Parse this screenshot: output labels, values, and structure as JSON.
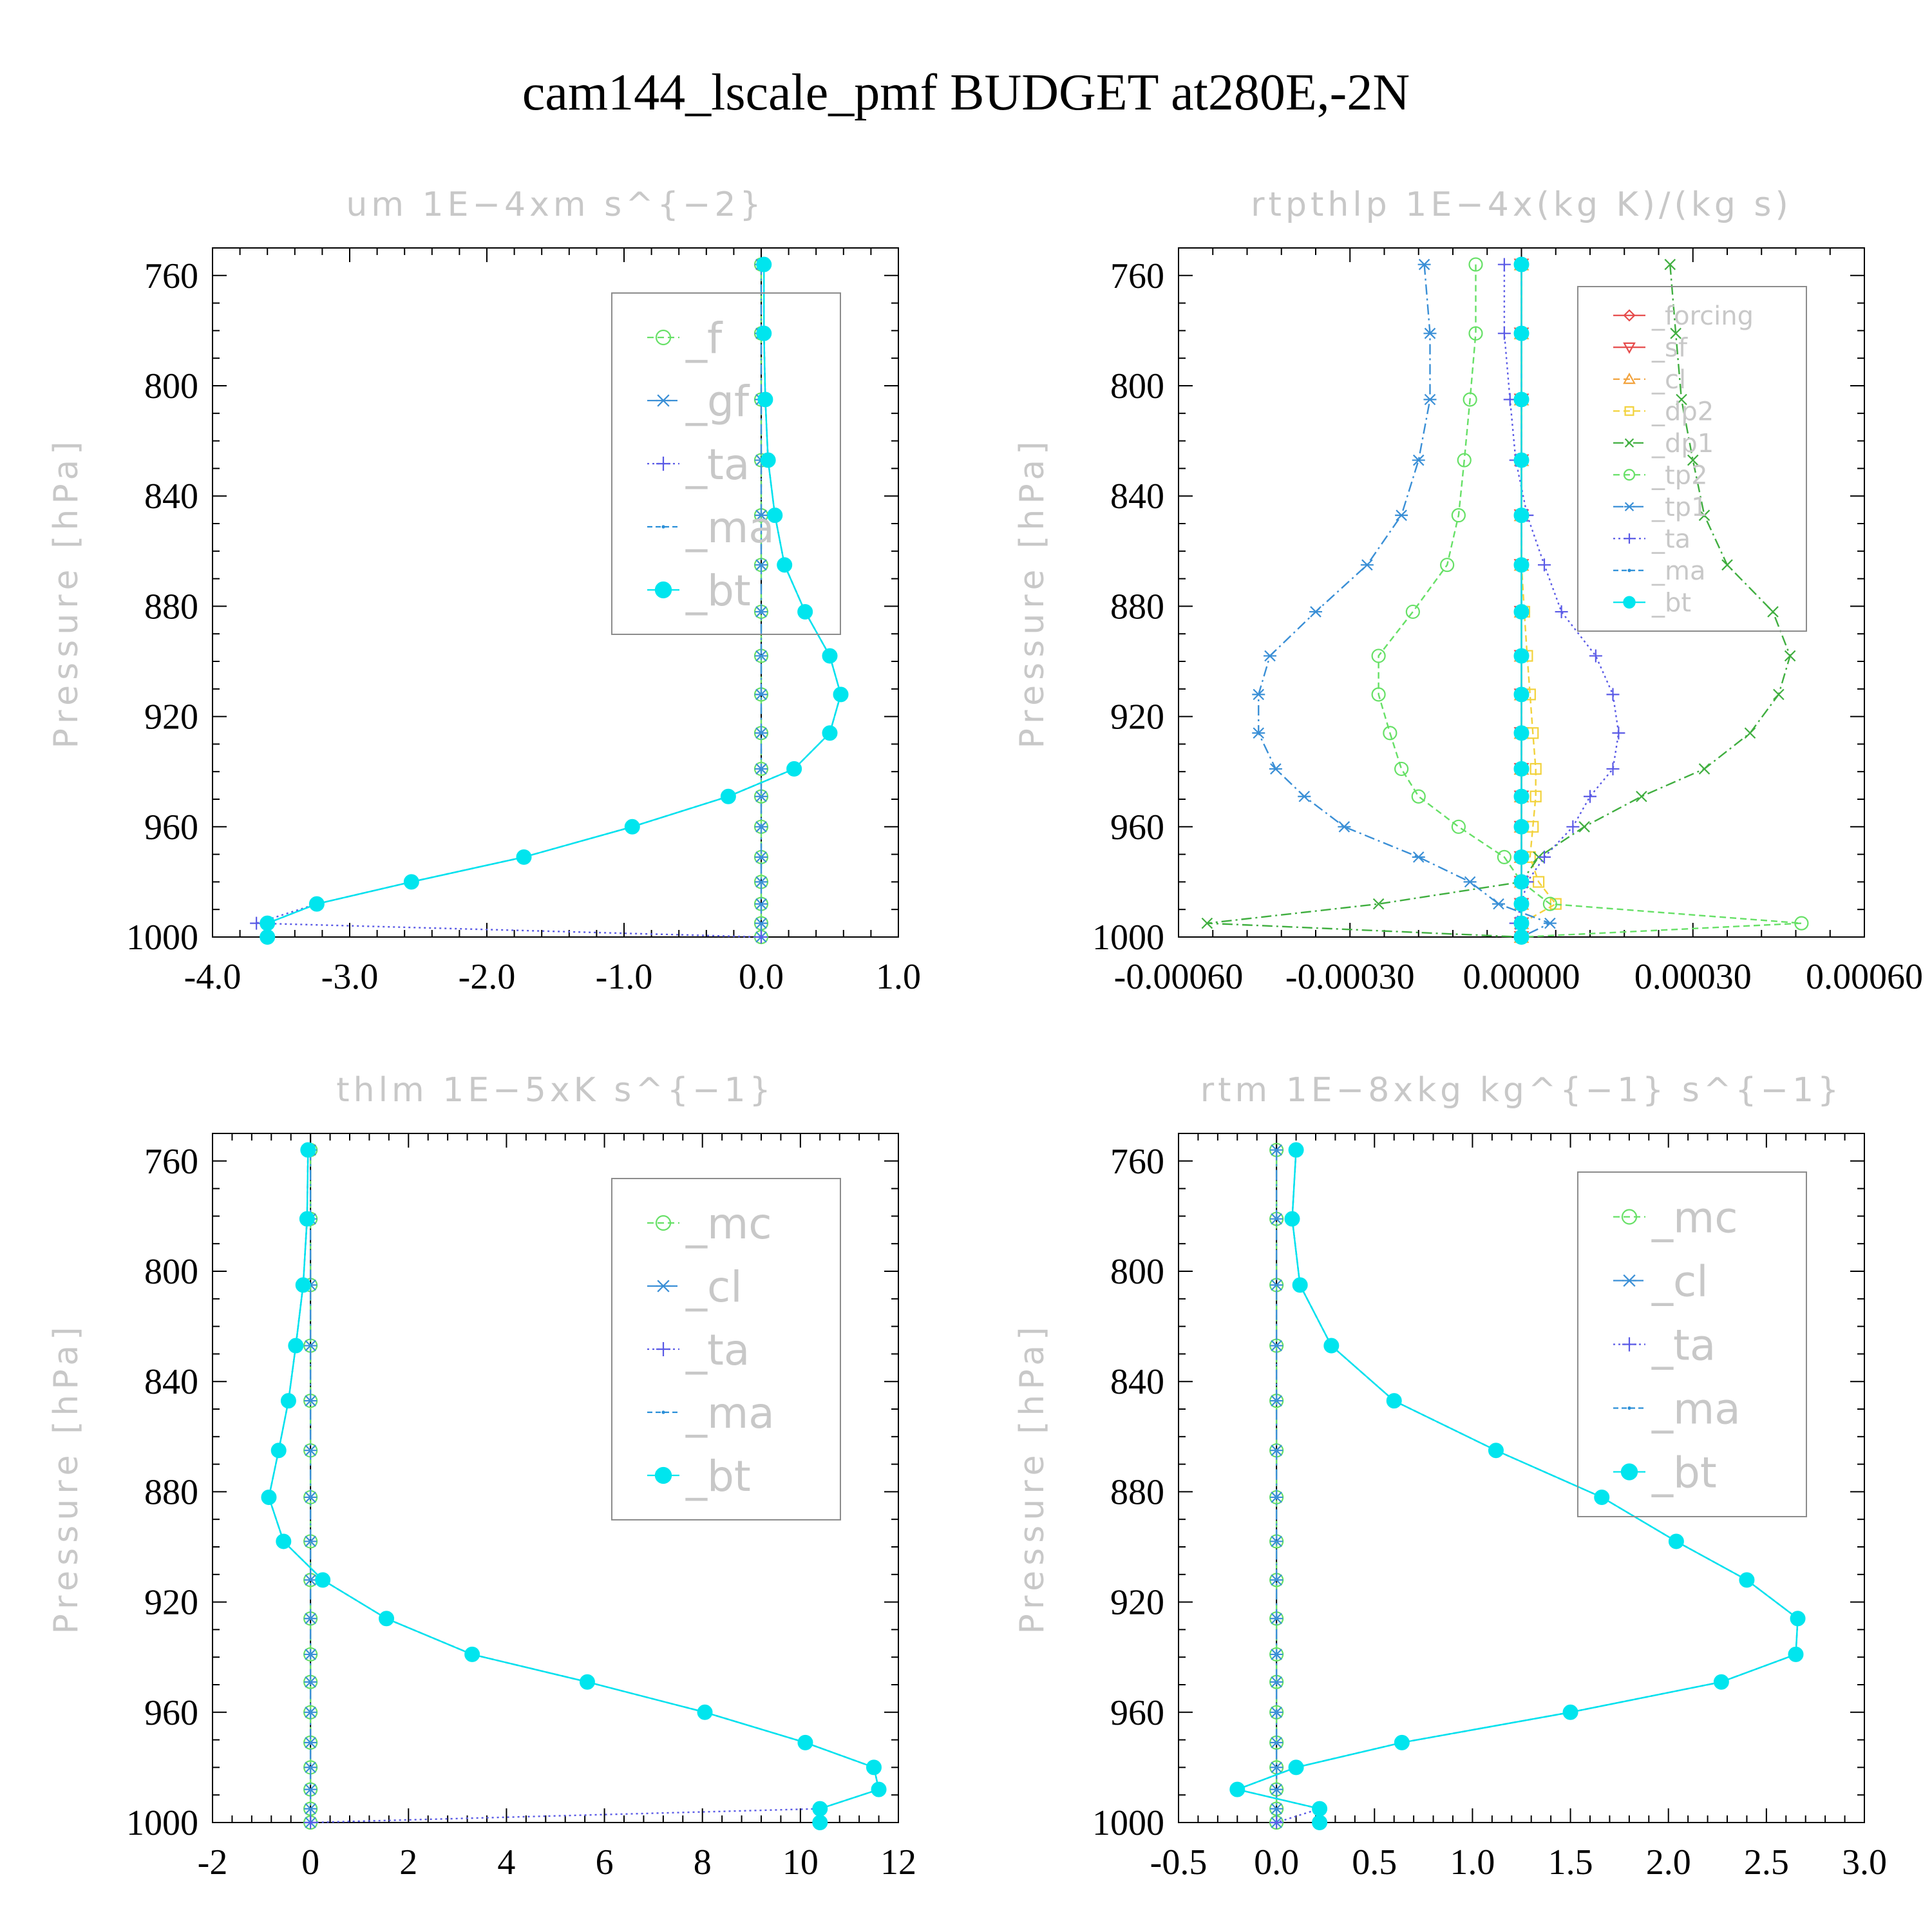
{
  "title": "cam144_lscale_pmf  BUDGET at280E,-2N",
  "chart_data": [
    {
      "type": "line",
      "title": "um   1E−4xm s^{−2}",
      "ylabel": "Pressure [hPa]",
      "xlabel": "",
      "xlim": [
        -4.0,
        1.0
      ],
      "ylim": [
        1000,
        750
      ],
      "x_ticks": [
        -4.0,
        -3.0,
        -2.0,
        -1.0,
        0.0,
        1.0
      ],
      "x_tick_labels": [
        "-4.0",
        "-3.0",
        "-2.0",
        "-1.0",
        "0.0",
        "1.0"
      ],
      "y_ticks": [
        760,
        800,
        840,
        880,
        920,
        960,
        1000
      ],
      "y_tick_labels": [
        "760",
        "800",
        "840",
        "880",
        "920",
        "960",
        "1000"
      ],
      "legend_position": "top-right",
      "legend_font": 66,
      "levels": [
        756,
        781,
        805,
        827,
        847,
        865,
        882,
        898,
        912,
        926,
        939,
        949,
        960,
        971,
        980,
        988,
        995,
        1000
      ],
      "series": [
        {
          "name": "_f",
          "color": "#66e066",
          "marker": "circle",
          "dash": "10,6",
          "values": [
            0,
            0,
            0,
            0,
            0,
            0,
            0,
            0,
            0,
            0,
            0,
            0,
            0,
            0,
            0,
            0,
            0,
            0
          ]
        },
        {
          "name": "_gf",
          "color": "#3a8fd6",
          "marker": "asterisk",
          "dash": "16,6,3,6",
          "values": [
            0,
            0,
            0,
            0,
            0,
            0,
            0,
            0,
            0,
            0,
            0,
            0,
            0,
            0,
            0,
            0,
            0,
            0
          ]
        },
        {
          "name": "_ta",
          "color": "#5a5ae6",
          "marker": "plus",
          "dash": "3,5",
          "values": [
            0.02,
            0.02,
            0.03,
            0.05,
            0.1,
            0.17,
            0.32,
            0.5,
            0.58,
            0.5,
            0.24,
            -0.24,
            -0.94,
            -1.73,
            -2.55,
            -3.24,
            -3.68,
            0
          ]
        },
        {
          "name": "_ma",
          "color": "#2a8fd8",
          "marker": "dot",
          "dash": "8,5",
          "values": [
            0.02,
            0.02,
            0.03,
            0.05,
            0.1,
            0.17,
            0.32,
            0.5,
            0.58,
            0.5,
            0.24,
            -0.24,
            -0.94,
            -1.73,
            -2.55,
            -3.24,
            -3.6,
            -3.6
          ]
        },
        {
          "name": "_bt",
          "color": "#00e5ee",
          "marker": "filled",
          "dash": "",
          "values": [
            0.02,
            0.02,
            0.03,
            0.05,
            0.1,
            0.17,
            0.32,
            0.5,
            0.58,
            0.5,
            0.24,
            -0.24,
            -0.94,
            -1.73,
            -2.55,
            -3.24,
            -3.6,
            -3.6
          ]
        }
      ]
    },
    {
      "type": "line",
      "title": "rtpthlp   1E−4x(kg K)/(kg s)",
      "ylabel": "Pressure [hPa]",
      "xlabel": "",
      "xlim": [
        -0.0006,
        0.0006
      ],
      "ylim": [
        1000,
        750
      ],
      "x_ticks": [
        -0.0006,
        -0.0003,
        0,
        0.0003,
        0.0006
      ],
      "x_tick_labels": [
        "-0.00060",
        "-0.00030",
        "0.00000",
        "0.00030",
        "0.00060"
      ],
      "y_ticks": [
        760,
        800,
        840,
        880,
        920,
        960,
        1000
      ],
      "y_tick_labels": [
        "760",
        "800",
        "840",
        "880",
        "920",
        "960",
        "1000"
      ],
      "legend_position": "top-right",
      "legend_font": 40,
      "levels": [
        756,
        781,
        805,
        827,
        847,
        865,
        882,
        898,
        912,
        926,
        939,
        949,
        960,
        971,
        980,
        988,
        995,
        1000
      ],
      "series": [
        {
          "name": "_forcing",
          "color": "#e64a4a",
          "marker": "diamond",
          "dash": "",
          "values": [
            0,
            0,
            0,
            0,
            0,
            0,
            0,
            0,
            0,
            0,
            0,
            0,
            0,
            0,
            0,
            0,
            0,
            0
          ]
        },
        {
          "name": "_sf",
          "color": "#e64a4a",
          "marker": "tridown",
          "dash": "",
          "values": [
            0,
            0,
            0,
            0,
            0,
            0,
            0,
            0,
            0,
            0,
            0,
            0,
            0,
            0,
            0,
            0,
            0,
            0
          ]
        },
        {
          "name": "_cl",
          "color": "#f2a23c",
          "marker": "triup",
          "dash": "10,6",
          "values": [
            0,
            0,
            0,
            0,
            0,
            0,
            0,
            0,
            0,
            0,
            0,
            0,
            0,
            0,
            0,
            0,
            0,
            0
          ]
        },
        {
          "name": "_dp2",
          "color": "#f2d23c",
          "marker": "square",
          "dash": "10,6",
          "values": [
            0,
            0,
            0,
            0,
            0,
            0,
            5e-06,
            1e-05,
            1.5e-05,
            2e-05,
            2.5e-05,
            2.5e-05,
            2e-05,
            1.5e-05,
            3e-05,
            6e-05,
            0.0,
            0
          ]
        },
        {
          "name": "_dp1",
          "color": "#3fae3f",
          "marker": "cross",
          "dash": "16,6,3,6",
          "values": [
            0.00026,
            0.00027,
            0.00028,
            0.0003,
            0.00032,
            0.00036,
            0.00044,
            0.00047,
            0.00045,
            0.0004,
            0.00032,
            0.00021,
            0.00011,
            3e-05,
            0.0,
            -0.00025,
            -0.00055,
            0
          ]
        },
        {
          "name": "_tp2",
          "color": "#66e066",
          "marker": "circle",
          "dash": "10,6",
          "values": [
            -8e-05,
            -8e-05,
            -9e-05,
            -0.0001,
            -0.00011,
            -0.00013,
            -0.00019,
            -0.00025,
            -0.00025,
            -0.00023,
            -0.00021,
            -0.00018,
            -0.00011,
            -3e-05,
            0,
            5e-05,
            0.00049,
            0
          ]
        },
        {
          "name": "_tp1",
          "color": "#3a8fd6",
          "marker": "asterisk",
          "dash": "16,6,3,6",
          "values": [
            -0.00017,
            -0.00016,
            -0.00016,
            -0.00018,
            -0.00021,
            -0.00027,
            -0.00036,
            -0.00044,
            -0.00046,
            -0.00046,
            -0.00043,
            -0.00038,
            -0.00031,
            -0.00018,
            -9e-05,
            -4e-05,
            5e-05,
            0
          ]
        },
        {
          "name": "_ta",
          "color": "#5a5ae6",
          "marker": "plus",
          "dash": "3,5",
          "values": [
            -3e-05,
            -3e-05,
            -2e-05,
            -1e-05,
            1e-05,
            4e-05,
            7e-05,
            0.00013,
            0.00016,
            0.00017,
            0.00016,
            0.00012,
            9e-05,
            4e-05,
            1e-05,
            0.0,
            -1e-05,
            0
          ]
        },
        {
          "name": "_ma",
          "color": "#2a8fd8",
          "marker": "dot",
          "dash": "8,5",
          "values": [
            0,
            0,
            0,
            0,
            0,
            0,
            0,
            0,
            0,
            0,
            0,
            0,
            0,
            0,
            0,
            0,
            0,
            0
          ]
        },
        {
          "name": "_bt",
          "color": "#00e5ee",
          "marker": "filled",
          "dash": "",
          "values": [
            0,
            0,
            0,
            0,
            0,
            0,
            0,
            0,
            0,
            0,
            0,
            0,
            0,
            0,
            0,
            0,
            0,
            0
          ]
        }
      ]
    },
    {
      "type": "line",
      "title": "thlm   1E−5xK s^{−1}",
      "ylabel": "Pressure [hPa]",
      "xlabel": "",
      "xlim": [
        -2,
        12
      ],
      "ylim": [
        1000,
        750
      ],
      "x_ticks": [
        -2,
        0,
        2,
        4,
        6,
        8,
        10,
        12
      ],
      "x_tick_labels": [
        "-2",
        "0",
        "2",
        "4",
        "6",
        "8",
        "10",
        "12"
      ],
      "y_ticks": [
        760,
        800,
        840,
        880,
        920,
        960,
        1000
      ],
      "y_tick_labels": [
        "760",
        "800",
        "840",
        "880",
        "920",
        "960",
        "1000"
      ],
      "legend_position": "top-right",
      "legend_font": 66,
      "levels": [
        756,
        781,
        805,
        827,
        847,
        865,
        882,
        898,
        912,
        926,
        939,
        949,
        960,
        971,
        980,
        988,
        995,
        1000
      ],
      "series": [
        {
          "name": "_mc",
          "color": "#66e066",
          "marker": "circle",
          "dash": "10,6",
          "values": [
            0,
            0,
            0,
            0,
            0,
            0,
            0,
            0,
            0,
            0,
            0,
            0,
            0,
            0,
            0,
            0,
            0,
            0
          ]
        },
        {
          "name": "_cl",
          "color": "#3a8fd6",
          "marker": "asterisk",
          "dash": "16,6,3,6",
          "values": [
            0,
            0,
            0,
            0,
            0,
            0,
            0,
            0,
            0,
            0,
            0,
            0,
            0,
            0,
            0,
            0,
            0,
            0
          ]
        },
        {
          "name": "_ta",
          "color": "#5a5ae6",
          "marker": "plus",
          "dash": "3,5",
          "values": [
            -0.05,
            -0.07,
            -0.15,
            -0.3,
            -0.45,
            -0.65,
            -0.85,
            -0.55,
            0.25,
            1.55,
            3.3,
            5.65,
            8.05,
            10.1,
            11.5,
            11.6,
            10.4,
            0
          ]
        },
        {
          "name": "_ma",
          "color": "#2a8fd8",
          "marker": "dot",
          "dash": "8,5",
          "values": [
            -0.05,
            -0.07,
            -0.15,
            -0.3,
            -0.45,
            -0.65,
            -0.85,
            -0.55,
            0.25,
            1.55,
            3.3,
            5.65,
            8.05,
            10.1,
            11.5,
            11.6,
            10.4,
            10.4
          ]
        },
        {
          "name": "_bt",
          "color": "#00e5ee",
          "marker": "filled",
          "dash": "",
          "values": [
            -0.05,
            -0.07,
            -0.15,
            -0.3,
            -0.45,
            -0.65,
            -0.85,
            -0.55,
            0.25,
            1.55,
            3.3,
            5.65,
            8.05,
            10.1,
            11.5,
            11.6,
            10.4,
            10.4
          ]
        }
      ]
    },
    {
      "type": "line",
      "title": "rtm   1E−8xkg kg^{−1} s^{−1}",
      "ylabel": "Pressure [hPa]",
      "xlabel": "",
      "xlim": [
        -0.5,
        3.0
      ],
      "ylim": [
        1000,
        750
      ],
      "x_ticks": [
        -0.5,
        0.0,
        0.5,
        1.0,
        1.5,
        2.0,
        2.5,
        3.0
      ],
      "x_tick_labels": [
        "-0.5",
        "0.0",
        "0.5",
        "1.0",
        "1.5",
        "2.0",
        "2.5",
        "3.0"
      ],
      "y_ticks": [
        760,
        800,
        840,
        880,
        920,
        960,
        1000
      ],
      "y_tick_labels": [
        "760",
        "800",
        "840",
        "880",
        "920",
        "960",
        "1000"
      ],
      "legend_position": "top-right",
      "legend_font": 66,
      "levels": [
        756,
        781,
        805,
        827,
        847,
        865,
        882,
        898,
        912,
        926,
        939,
        949,
        960,
        971,
        980,
        988,
        995,
        1000
      ],
      "series": [
        {
          "name": "_mc",
          "color": "#66e066",
          "marker": "circle",
          "dash": "10,6",
          "values": [
            0,
            0,
            0,
            0,
            0,
            0,
            0,
            0,
            0,
            0,
            0,
            0,
            0,
            0,
            0,
            0,
            0,
            0
          ]
        },
        {
          "name": "_cl",
          "color": "#3a8fd6",
          "marker": "asterisk",
          "dash": "16,6,3,6",
          "values": [
            0,
            0,
            0,
            0,
            0,
            0,
            0,
            0,
            0,
            0,
            0,
            0,
            0,
            0,
            0,
            0,
            0,
            0
          ]
        },
        {
          "name": "_ta",
          "color": "#5a5ae6",
          "marker": "plus",
          "dash": "3,5",
          "values": [
            0.1,
            0.08,
            0.12,
            0.28,
            0.6,
            1.12,
            1.66,
            2.04,
            2.4,
            2.66,
            2.65,
            2.27,
            1.5,
            0.64,
            0.1,
            -0.2,
            0.22,
            0
          ]
        },
        {
          "name": "_ma",
          "color": "#2a8fd8",
          "marker": "dot",
          "dash": "8,5",
          "values": [
            0.1,
            0.08,
            0.12,
            0.28,
            0.6,
            1.12,
            1.66,
            2.04,
            2.4,
            2.66,
            2.65,
            2.27,
            1.5,
            0.64,
            0.1,
            -0.2,
            0.22,
            0.22
          ]
        },
        {
          "name": "_bt",
          "color": "#00e5ee",
          "marker": "filled",
          "dash": "",
          "values": [
            0.1,
            0.08,
            0.12,
            0.28,
            0.6,
            1.12,
            1.66,
            2.04,
            2.4,
            2.66,
            2.65,
            2.27,
            1.5,
            0.64,
            0.1,
            -0.2,
            0.22,
            0.22
          ]
        }
      ]
    }
  ]
}
